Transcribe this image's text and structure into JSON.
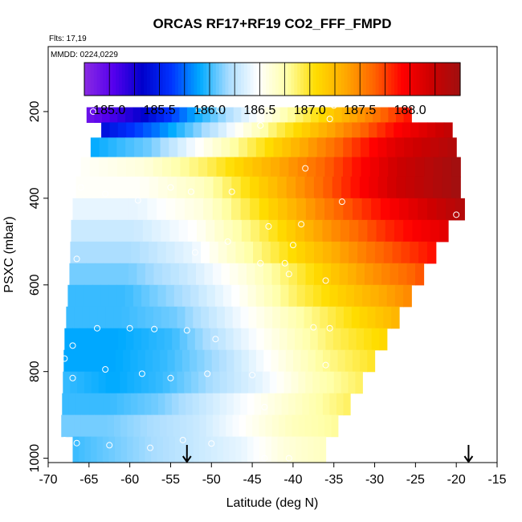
{
  "chart_data": {
    "type": "heatmap",
    "title": "ORCAS RF17+RF19 CO2_FFF_FMPD",
    "flights_note": "Flts: 17,19",
    "date_note": "MMDD: 0224,0229",
    "xlabel": "Latitude (deg N)",
    "ylabel": "PSXC (mbar)",
    "xlim": [
      -70,
      -15
    ],
    "ylim": [
      1010,
      50
    ],
    "y_reversed": true,
    "xticks": [
      "-70",
      "-65",
      "-60",
      "-55",
      "-50",
      "-45",
      "-40",
      "-35",
      "-30",
      "-25",
      "-20",
      "-15"
    ],
    "yticks": [
      "200",
      "400",
      "600",
      "800",
      "1000"
    ],
    "colorbar": {
      "range": [
        184.75,
        188.5
      ],
      "tick_labels": [
        "185.0",
        "185.5",
        "186.0",
        "186.5",
        "187.0",
        "187.5",
        "188.0"
      ],
      "colors": [
        "#8a2be2",
        "#5500ee",
        "#0000cc",
        "#0033ff",
        "#00aaff",
        "#aaddff",
        "#ffffff",
        "#ffffaa",
        "#ffdd00",
        "#ffaa00",
        "#ff6600",
        "#ff0000",
        "#cc0000",
        "#a01010"
      ]
    },
    "pressure_bands": [
      {
        "p_top": 190,
        "p_bot": 225,
        "lat_min": -65.3,
        "lat_max": -25.5,
        "values": [
          184.9,
          185.3,
          185.9,
          186.4,
          186.9,
          187.4,
          187.9
        ]
      },
      {
        "p_top": 225,
        "p_bot": 260,
        "lat_min": -63.5,
        "lat_max": -20.5,
        "values": [
          185.4,
          185.8,
          186.3,
          186.9,
          187.4,
          187.9,
          188.3
        ]
      },
      {
        "p_top": 260,
        "p_bot": 305,
        "lat_min": -64.8,
        "lat_max": -20.0,
        "values": [
          185.9,
          186.1,
          186.6,
          187.1,
          187.6,
          188.1,
          188.4
        ]
      },
      {
        "p_top": 305,
        "p_bot": 350,
        "lat_min": -66.0,
        "lat_max": -19.5,
        "values": [
          186.5,
          186.6,
          186.9,
          187.3,
          187.7,
          188.2,
          188.5
        ]
      },
      {
        "p_top": 350,
        "p_bot": 400,
        "lat_min": -66.6,
        "lat_max": -19.5,
        "values": [
          186.5,
          186.5,
          186.7,
          187.2,
          187.7,
          188.2,
          188.5
        ]
      },
      {
        "p_top": 400,
        "p_bot": 450,
        "lat_min": -67.0,
        "lat_max": -19.0,
        "values": [
          186.4,
          186.4,
          186.6,
          187.1,
          187.6,
          188.0,
          188.4
        ]
      },
      {
        "p_top": 450,
        "p_bot": 500,
        "lat_min": -67.2,
        "lat_max": -21.0,
        "values": [
          186.3,
          186.3,
          186.5,
          186.9,
          187.4,
          187.8,
          188.1
        ]
      },
      {
        "p_top": 500,
        "p_bot": 550,
        "lat_min": -67.3,
        "lat_max": -22.5,
        "values": [
          186.2,
          186.2,
          186.4,
          186.8,
          187.2,
          187.6,
          187.9
        ]
      },
      {
        "p_top": 550,
        "p_bot": 600,
        "lat_min": -67.4,
        "lat_max": -24.0,
        "values": [
          186.1,
          186.1,
          186.3,
          186.6,
          187.0,
          187.4,
          187.7
        ]
      },
      {
        "p_top": 600,
        "p_bot": 650,
        "lat_min": -67.6,
        "lat_max": -25.5,
        "values": [
          186.0,
          186.0,
          186.2,
          186.5,
          186.9,
          187.2,
          187.5
        ]
      },
      {
        "p_top": 650,
        "p_bot": 700,
        "lat_min": -67.8,
        "lat_max": -27.0,
        "values": [
          186.0,
          186.0,
          186.1,
          186.4,
          186.7,
          187.0,
          187.3
        ]
      },
      {
        "p_top": 700,
        "p_bot": 750,
        "lat_min": -68.0,
        "lat_max": -28.5,
        "values": [
          185.9,
          185.9,
          186.0,
          186.3,
          186.6,
          186.9,
          187.1
        ]
      },
      {
        "p_top": 750,
        "p_bot": 800,
        "lat_min": -68.1,
        "lat_max": -30.0,
        "values": [
          185.9,
          185.9,
          186.0,
          186.2,
          186.5,
          186.8,
          187.0
        ]
      },
      {
        "p_top": 800,
        "p_bot": 850,
        "lat_min": -68.2,
        "lat_max": -31.5,
        "values": [
          186.0,
          185.9,
          186.0,
          186.2,
          186.4,
          186.7,
          186.9
        ]
      },
      {
        "p_top": 850,
        "p_bot": 900,
        "lat_min": -68.3,
        "lat_max": -33.0,
        "values": [
          186.0,
          186.0,
          186.1,
          186.3,
          186.5,
          186.7,
          186.9
        ]
      },
      {
        "p_top": 900,
        "p_bot": 950,
        "lat_min": -68.4,
        "lat_max": -34.5,
        "values": [
          186.1,
          186.1,
          186.2,
          186.3,
          186.5,
          186.7,
          186.8
        ]
      },
      {
        "p_top": 950,
        "p_bot": 1010,
        "lat_min": -67.0,
        "lat_max": -36.0,
        "values": [
          186.0,
          186.1,
          186.2,
          186.3,
          186.4,
          186.6,
          186.7
        ]
      }
    ],
    "sample_points": [
      {
        "lat": -64.5,
        "p": 200
      },
      {
        "lat": -62.5,
        "p": 182
      },
      {
        "lat": -51.5,
        "p": 197
      },
      {
        "lat": -49.0,
        "p": 195
      },
      {
        "lat": -45.5,
        "p": 189
      },
      {
        "lat": -38.0,
        "p": 182
      },
      {
        "lat": -35.0,
        "p": 186
      },
      {
        "lat": -25.5,
        "p": 188
      },
      {
        "lat": -20.5,
        "p": 213
      },
      {
        "lat": -44.0,
        "p": 232
      },
      {
        "lat": -35.5,
        "p": 217
      },
      {
        "lat": -38.5,
        "p": 331
      },
      {
        "lat": -66.0,
        "p": 375
      },
      {
        "lat": -63.0,
        "p": 390
      },
      {
        "lat": -55.0,
        "p": 375
      },
      {
        "lat": -52.5,
        "p": 385
      },
      {
        "lat": -47.5,
        "p": 385
      },
      {
        "lat": -59.0,
        "p": 405
      },
      {
        "lat": -34.0,
        "p": 408
      },
      {
        "lat": -20.0,
        "p": 438
      },
      {
        "lat": -43.0,
        "p": 465
      },
      {
        "lat": -39.0,
        "p": 460
      },
      {
        "lat": -52.5,
        "p": 485
      },
      {
        "lat": -48.0,
        "p": 500
      },
      {
        "lat": -40.0,
        "p": 508
      },
      {
        "lat": -52.0,
        "p": 525
      },
      {
        "lat": -66.5,
        "p": 540
      },
      {
        "lat": -44.0,
        "p": 550
      },
      {
        "lat": -41.0,
        "p": 550
      },
      {
        "lat": -40.5,
        "p": 575
      },
      {
        "lat": -36.0,
        "p": 590
      },
      {
        "lat": -64.0,
        "p": 700
      },
      {
        "lat": -60.0,
        "p": 700
      },
      {
        "lat": -57.0,
        "p": 702
      },
      {
        "lat": -53.0,
        "p": 705
      },
      {
        "lat": -49.5,
        "p": 725
      },
      {
        "lat": -37.5,
        "p": 698
      },
      {
        "lat": -35.5,
        "p": 700
      },
      {
        "lat": -67.0,
        "p": 740
      },
      {
        "lat": -68.0,
        "p": 770
      },
      {
        "lat": -36.0,
        "p": 785
      },
      {
        "lat": -63.0,
        "p": 795
      },
      {
        "lat": -58.5,
        "p": 805
      },
      {
        "lat": -55.0,
        "p": 815
      },
      {
        "lat": -50.5,
        "p": 805
      },
      {
        "lat": -45.0,
        "p": 808
      },
      {
        "lat": -67.0,
        "p": 815
      },
      {
        "lat": -43.5,
        "p": 882
      },
      {
        "lat": -68.0,
        "p": 958
      },
      {
        "lat": -66.5,
        "p": 965
      },
      {
        "lat": -62.5,
        "p": 970
      },
      {
        "lat": -57.5,
        "p": 976
      },
      {
        "lat": -53.5,
        "p": 958
      },
      {
        "lat": -50.0,
        "p": 966
      },
      {
        "lat": -43.5,
        "p": 1000
      },
      {
        "lat": -40.5,
        "p": 1000
      }
    ],
    "arrows": [
      {
        "lat": -53.0
      },
      {
        "lat": -18.5
      }
    ]
  }
}
